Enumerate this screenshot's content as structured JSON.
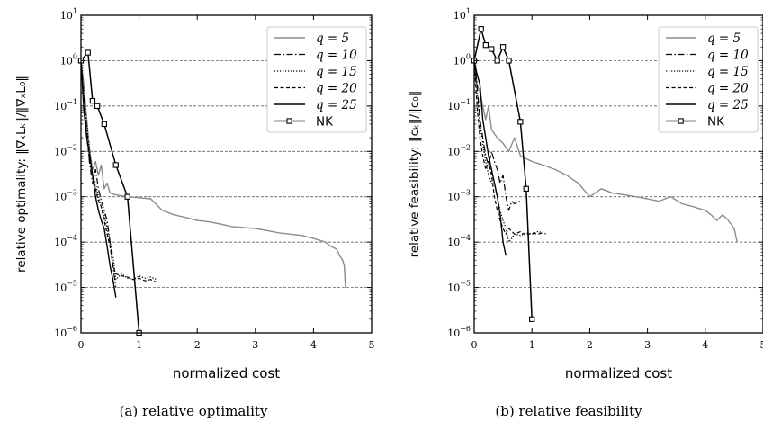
{
  "colors": {
    "q5": "#8c8c8c",
    "dark": "#000000",
    "grid": "#444444"
  },
  "captions": [
    "(a) relative optimality",
    "(b) relative feasibility"
  ],
  "chart_data": [
    {
      "type": "line",
      "xlabel": "normalized cost",
      "ylabel": "relative optimality: ‖∇ₓLₖ‖/‖∇ₓL₀‖",
      "xlim": [
        0,
        5
      ],
      "ylim": [
        1e-06,
        10
      ],
      "yscale": "log",
      "grid": "horizontal dashed at 1e-5, 1e-4, 1e-3, 1e-2, 1e-1, 1",
      "legend_position": "top-right",
      "x_ticks": [
        "0",
        "1",
        "2",
        "3",
        "4",
        "5"
      ],
      "y_ticks": [
        "10^-6",
        "10^-5",
        "10^-4",
        "10^-3",
        "10^-2",
        "10^-1",
        "10^0",
        "10^1"
      ],
      "series": [
        {
          "name": "q = 5",
          "style": "solid-gray",
          "x": [
            0,
            0.05,
            0.1,
            0.15,
            0.2,
            0.25,
            0.3,
            0.35,
            0.4,
            0.45,
            0.5,
            0.6,
            0.8,
            1.0,
            1.2,
            1.4,
            1.6,
            1.8,
            2.0,
            2.2,
            2.4,
            2.6,
            2.8,
            3.0,
            3.2,
            3.4,
            3.6,
            3.8,
            4.0,
            4.1,
            4.2,
            4.3,
            4.4,
            4.45,
            4.5,
            4.53,
            4.55
          ],
          "y": [
            1,
            0.3,
            0.05,
            0.01,
            0.004,
            0.006,
            0.003,
            0.005,
            0.0015,
            0.002,
            0.0012,
            0.0011,
            0.001,
            0.00095,
            0.0009,
            0.0005,
            0.0004,
            0.00035,
            0.0003,
            0.00028,
            0.00025,
            0.00022,
            0.00021,
            0.0002,
            0.00018,
            0.00016,
            0.00015,
            0.00014,
            0.00012,
            0.00011,
            0.0001,
            8e-05,
            7e-05,
            5e-05,
            4e-05,
            3e-05,
            1e-05
          ]
        },
        {
          "name": "q = 10",
          "style": "dashdot",
          "x": [
            0,
            0.05,
            0.1,
            0.15,
            0.2,
            0.25,
            0.3,
            0.35,
            0.4,
            0.45,
            0.5,
            0.55,
            0.6
          ],
          "y": [
            1,
            0.15,
            0.03,
            0.005,
            0.002,
            0.004,
            0.0015,
            0.0008,
            0.0005,
            0.0003,
            0.0001,
            3e-05,
            1e-05
          ]
        },
        {
          "name": "q = 15",
          "style": "dotted",
          "x": [
            0,
            0.05,
            0.1,
            0.15,
            0.2,
            0.25,
            0.3,
            0.35,
            0.4,
            0.45,
            0.5,
            0.55,
            0.6,
            0.7,
            0.8,
            0.9,
            1.0,
            1.1,
            1.2,
            1.3
          ],
          "y": [
            1,
            0.2,
            0.04,
            0.01,
            0.003,
            0.002,
            0.001,
            0.0006,
            0.0004,
            0.0002,
            0.0001,
            5e-05,
            1.5e-05,
            2e-05,
            1.6e-05,
            1.5e-05,
            1.8e-05,
            1.6e-05,
            1.7e-05,
            1.5e-05
          ]
        },
        {
          "name": "q = 20",
          "style": "dashed",
          "x": [
            0,
            0.05,
            0.1,
            0.15,
            0.2,
            0.25,
            0.3,
            0.35,
            0.4,
            0.45,
            0.5,
            0.55,
            0.6,
            0.7,
            0.8,
            0.9,
            1.0,
            1.1,
            1.2,
            1.3
          ],
          "y": [
            1,
            0.1,
            0.02,
            0.006,
            0.003,
            0.0015,
            0.0008,
            0.0006,
            0.0003,
            0.00015,
            8e-05,
            3e-05,
            2e-05,
            1.8e-05,
            1.7e-05,
            1.5e-05,
            1.6e-05,
            1.4e-05,
            1.5e-05,
            1.3e-05
          ]
        },
        {
          "name": "q = 25",
          "style": "solid",
          "x": [
            0,
            0.05,
            0.1,
            0.15,
            0.2,
            0.25,
            0.3,
            0.35,
            0.4,
            0.45,
            0.5,
            0.55,
            0.6
          ],
          "y": [
            1,
            0.08,
            0.02,
            0.008,
            0.003,
            0.001,
            0.0005,
            0.0003,
            0.0002,
            8e-05,
            3e-05,
            1.5e-05,
            6e-06
          ]
        },
        {
          "name": "NK",
          "style": "solid-square",
          "x": [
            0,
            0.12,
            0.2,
            0.28,
            0.4,
            0.6,
            0.8,
            1.0
          ],
          "y": [
            1,
            1.5,
            0.13,
            0.1,
            0.04,
            0.005,
            0.001,
            1e-06
          ]
        }
      ]
    },
    {
      "type": "line",
      "xlabel": "normalized cost",
      "ylabel": "relative feasibility: ‖cₖ‖/‖c₀‖",
      "xlim": [
        0,
        5
      ],
      "ylim": [
        1e-06,
        10
      ],
      "yscale": "log",
      "grid": "horizontal dashed at 1e-5, 1e-4, 1e-3, 1e-2, 1e-1, 1",
      "legend_position": "top-right",
      "x_ticks": [
        "0",
        "1",
        "2",
        "3",
        "4",
        "5"
      ],
      "y_ticks": [
        "10^-6",
        "10^-5",
        "10^-4",
        "10^-3",
        "10^-2",
        "10^-1",
        "10^0",
        "10^1"
      ],
      "series": [
        {
          "name": "q = 5",
          "style": "solid-gray",
          "x": [
            0,
            0.05,
            0.1,
            0.15,
            0.2,
            0.25,
            0.3,
            0.4,
            0.5,
            0.6,
            0.7,
            0.8,
            1.0,
            1.2,
            1.4,
            1.6,
            1.8,
            2.0,
            2.2,
            2.4,
            2.6,
            2.8,
            3.0,
            3.2,
            3.4,
            3.6,
            3.8,
            4.0,
            4.1,
            4.2,
            4.3,
            4.4,
            4.5,
            4.55
          ],
          "y": [
            1,
            0.3,
            0.2,
            0.1,
            0.05,
            0.1,
            0.03,
            0.02,
            0.015,
            0.01,
            0.02,
            0.008,
            0.006,
            0.005,
            0.004,
            0.003,
            0.002,
            0.001,
            0.0015,
            0.0012,
            0.0011,
            0.001,
            0.0009,
            0.0008,
            0.001,
            0.0007,
            0.0006,
            0.0005,
            0.0004,
            0.0003,
            0.0004,
            0.0003,
            0.0002,
            0.0001
          ]
        },
        {
          "name": "q = 10",
          "style": "dashdot",
          "x": [
            0,
            0.05,
            0.1,
            0.15,
            0.2,
            0.25,
            0.3,
            0.35,
            0.4,
            0.45,
            0.5,
            0.55,
            0.6,
            0.65,
            0.7,
            0.8
          ],
          "y": [
            1,
            0.3,
            0.05,
            0.02,
            0.008,
            0.005,
            0.01,
            0.006,
            0.004,
            0.002,
            0.003,
            0.001,
            0.0005,
            0.0008,
            0.0007,
            0.0008
          ]
        },
        {
          "name": "q = 15",
          "style": "dotted",
          "x": [
            0,
            0.05,
            0.1,
            0.15,
            0.2,
            0.25,
            0.3,
            0.35,
            0.4,
            0.45,
            0.5,
            0.55,
            0.6,
            0.7,
            0.8,
            0.9,
            1.0,
            1.1,
            1.2,
            1.25
          ],
          "y": [
            1,
            0.2,
            0.04,
            0.015,
            0.006,
            0.003,
            0.002,
            0.002,
            0.001,
            0.0005,
            0.0003,
            0.0002,
            0.0001,
            0.00015,
            0.00014,
            0.00016,
            0.00015,
            0.00017,
            0.00016,
            0.00015
          ]
        },
        {
          "name": "q = 20",
          "style": "dashed",
          "x": [
            0,
            0.05,
            0.1,
            0.15,
            0.2,
            0.25,
            0.3,
            0.35,
            0.4,
            0.45,
            0.5,
            0.55,
            0.6,
            0.7,
            0.8,
            0.9,
            1.0,
            1.1,
            1.2
          ],
          "y": [
            1,
            0.1,
            0.02,
            0.008,
            0.004,
            0.006,
            0.003,
            0.001,
            0.0005,
            0.0003,
            0.0002,
            0.00015,
            0.0002,
            0.00015,
            0.00017,
            0.00014,
            0.00016,
            0.00015,
            0.00016
          ]
        },
        {
          "name": "q = 25",
          "style": "solid",
          "x": [
            0,
            0.05,
            0.1,
            0.15,
            0.2,
            0.25,
            0.3,
            0.35,
            0.4,
            0.45,
            0.5,
            0.55
          ],
          "y": [
            1,
            0.5,
            0.3,
            0.05,
            0.02,
            0.008,
            0.004,
            0.002,
            0.001,
            0.0004,
            0.0001,
            5e-05
          ]
        },
        {
          "name": "NK",
          "style": "solid-square",
          "x": [
            0,
            0.12,
            0.2,
            0.3,
            0.4,
            0.5,
            0.6,
            0.8,
            0.9,
            1.0
          ],
          "y": [
            1,
            5,
            2.2,
            1.8,
            1.0,
            2.0,
            1.0,
            0.045,
            0.0015,
            2e-06
          ]
        }
      ]
    }
  ]
}
